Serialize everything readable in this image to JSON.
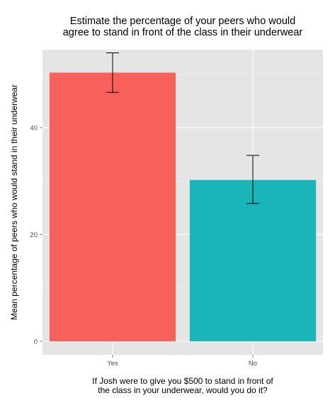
{
  "chart_data": {
    "type": "bar",
    "title": "Estimate the percentage of your peers who would agree to stand in front of the class in their underwear",
    "title_lines": [
      "Estimate the percentage of your peers who would",
      "agree to stand in front of the class in their underwear"
    ],
    "xlabel": "If Josh were to give you $500 to stand in front of the class in your underwear, would you do it?",
    "xlabel_lines": [
      "If Josh were to give you $500 to stand in front of",
      "the class in your underwear, would you do it?"
    ],
    "ylabel": "Mean percentage of peers who would stand in their underwear",
    "categories": [
      "Yes",
      "No"
    ],
    "values": [
      50.3,
      30.2
    ],
    "error_low": [
      46.6,
      25.8
    ],
    "error_high": [
      54.0,
      34.8
    ],
    "colors": [
      "#f8605c",
      "#19b5b8"
    ],
    "ylim": [
      0,
      54.6
    ],
    "yticks": [
      0,
      20,
      40
    ],
    "grid": true,
    "legend": "none"
  }
}
